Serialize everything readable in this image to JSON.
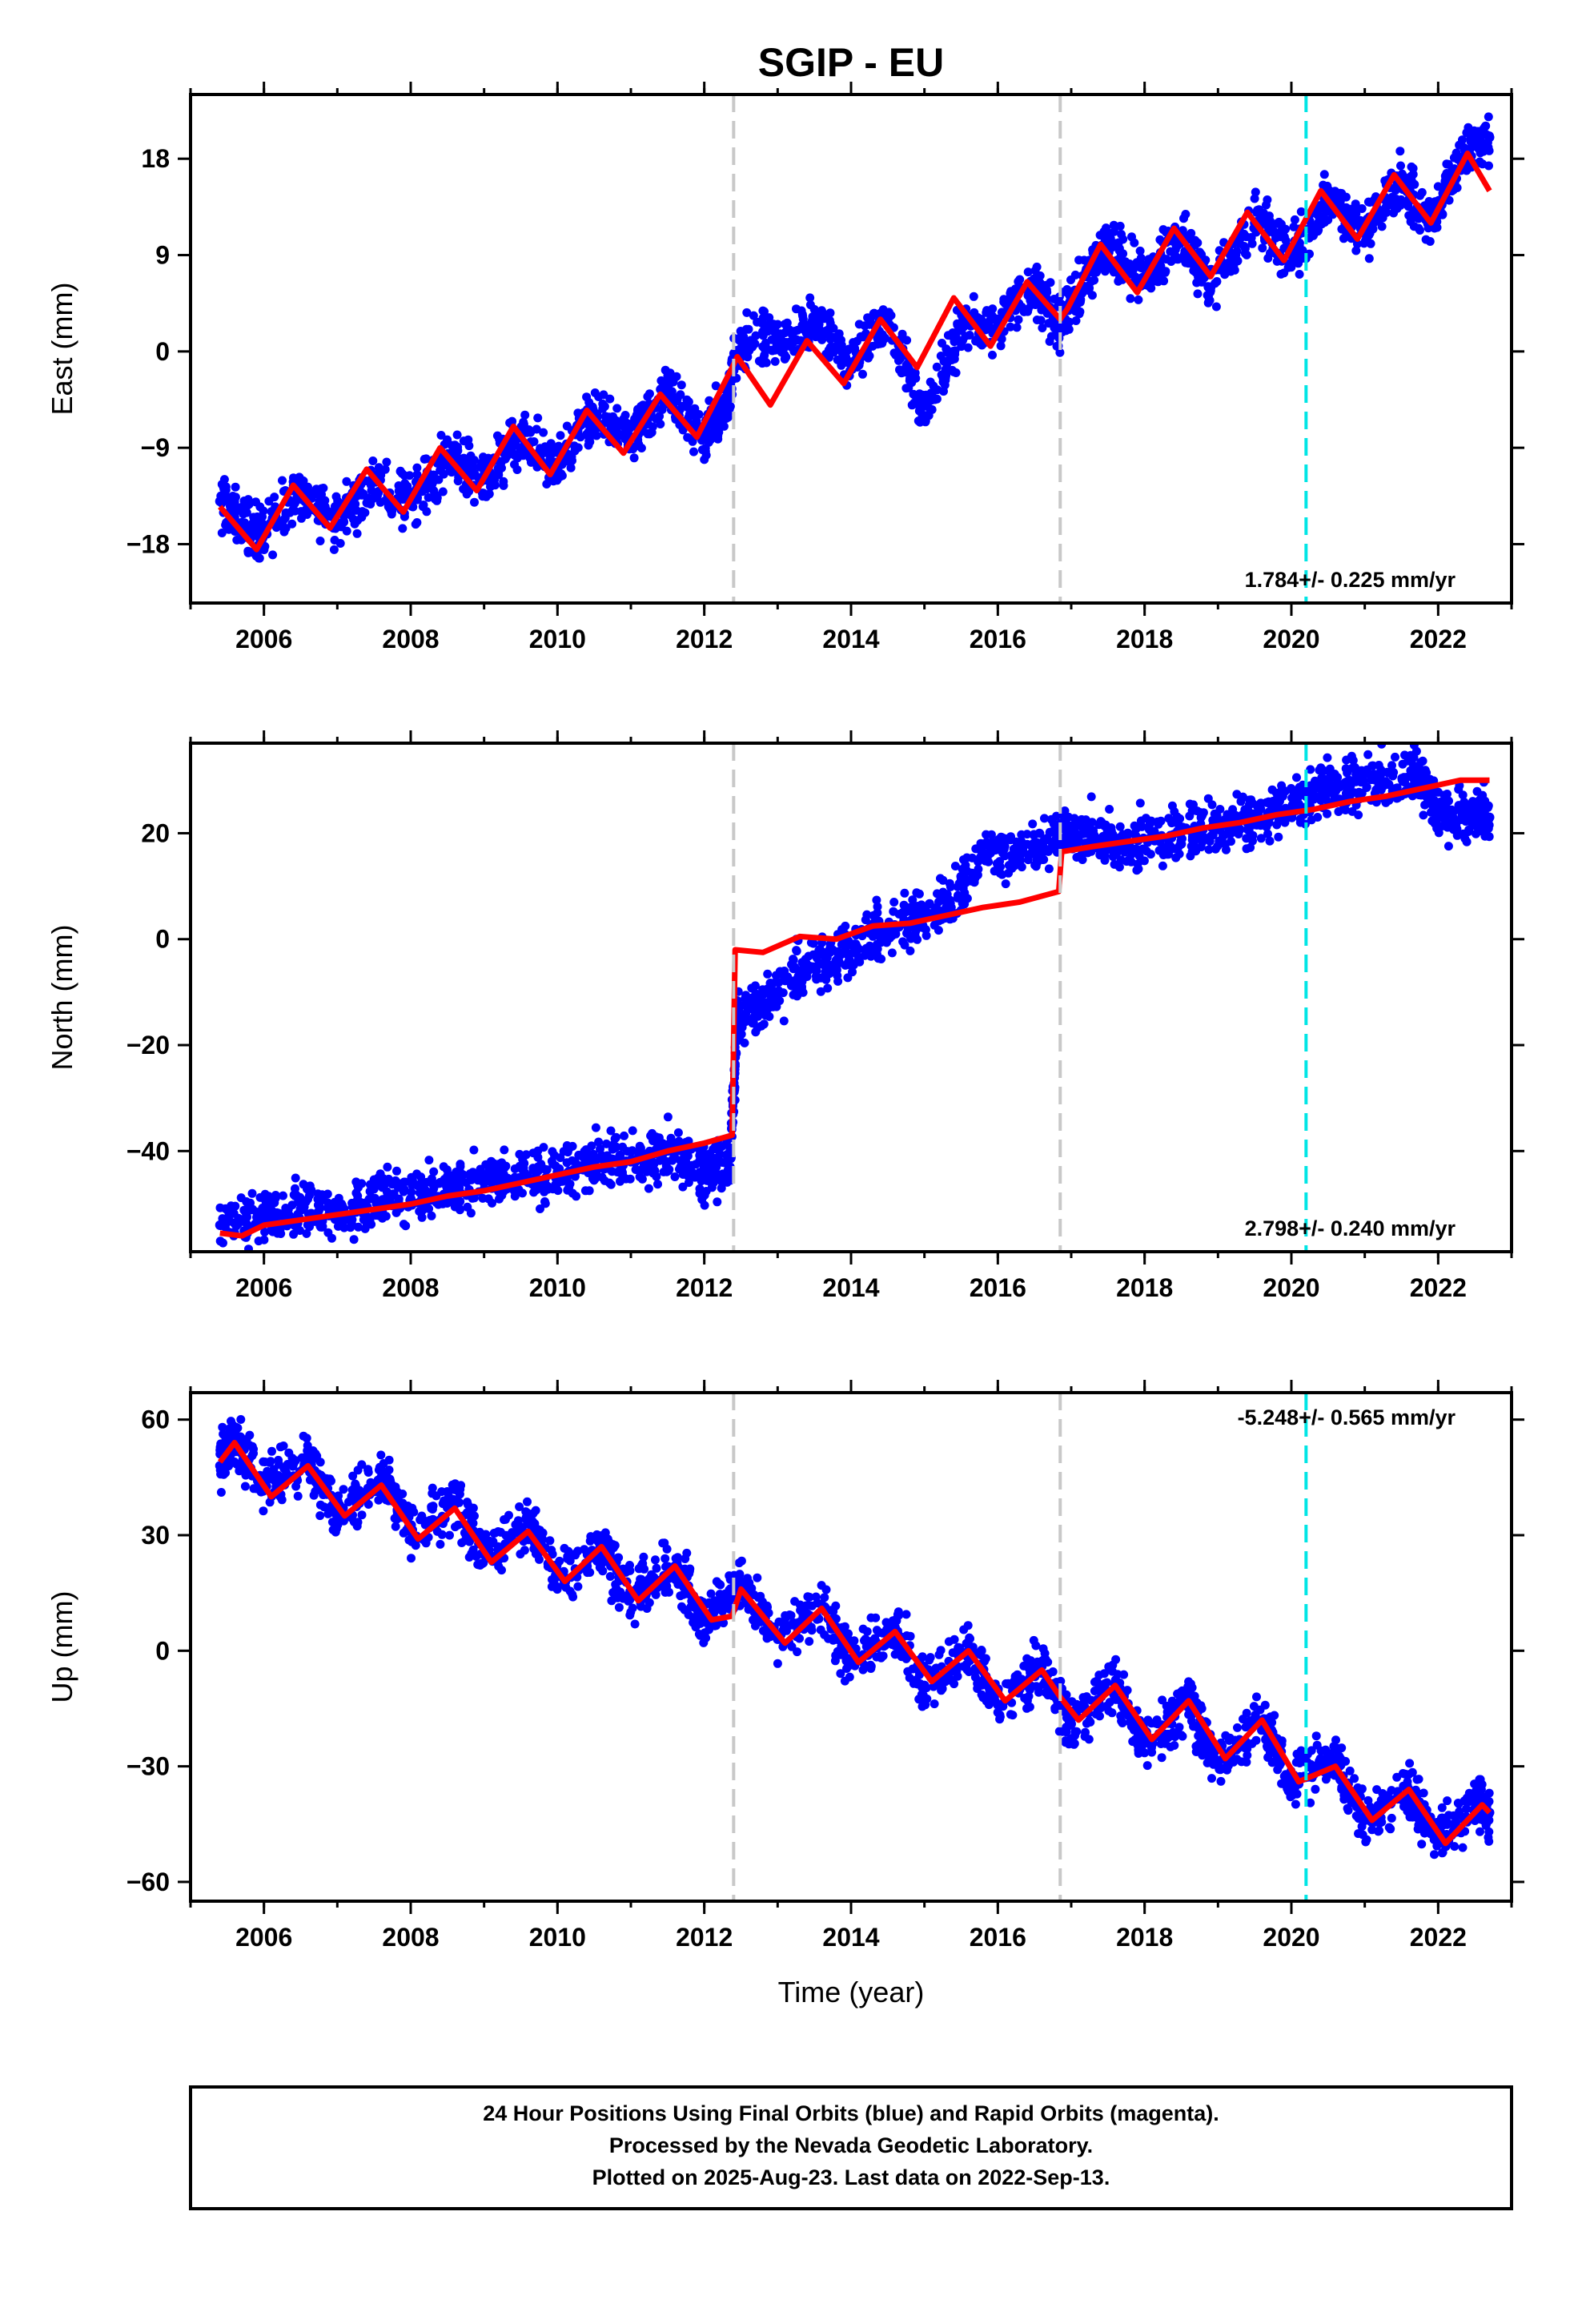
{
  "title": "SGIP - EU",
  "xlabel": "Time (year)",
  "caption": [
    "24 Hour Positions Using Final Orbits (blue) and Rapid Orbits (magenta).",
    "Processed by the Nevada Geodetic Laboratory.",
    "Plotted on 2025-Aug-23. Last data on 2022-Sep-13."
  ],
  "colors": {
    "final_orbits": "#0000ff",
    "model": "#ff0000",
    "equipment_change": "#c8c8c8",
    "other_event": "#00e5e5"
  },
  "chart_data": [
    {
      "type": "scatter",
      "ylabel": "East (mm)",
      "xlim": [
        2005.0,
        2023.0
      ],
      "ylim": [
        -23.5,
        24.0
      ],
      "x_ticks": [
        2006,
        2008,
        2010,
        2012,
        2014,
        2016,
        2018,
        2020,
        2022
      ],
      "y_ticks": [
        -18,
        -9,
        0,
        9,
        18
      ],
      "rate_label": "1.784+/- 0.225 mm/yr",
      "rate_position": "bottom-right",
      "vertical_lines": [
        {
          "x": 2012.4,
          "color": "gray"
        },
        {
          "x": 2016.85,
          "color": "gray"
        },
        {
          "x": 2020.2,
          "color": "cyan"
        }
      ],
      "series": [
        {
          "name": "Final Orbits (blue)",
          "kind": "points",
          "x": [
            2005.4,
            2005.7,
            2006.0,
            2006.5,
            2007.0,
            2007.5,
            2008.0,
            2008.5,
            2009.0,
            2009.5,
            2010.0,
            2010.5,
            2011.0,
            2011.5,
            2012.0,
            2012.3,
            2012.5,
            2013.0,
            2013.5,
            2014.0,
            2014.5,
            2015.0,
            2015.5,
            2016.0,
            2016.5,
            2016.85,
            2017.2,
            2017.5,
            2018.0,
            2018.5,
            2018.9,
            2019.5,
            2020.0,
            2020.5,
            2021.0,
            2021.5,
            2021.9,
            2022.3,
            2022.7
          ],
          "y": [
            -14,
            -16,
            -17,
            -13,
            -16,
            -12,
            -14,
            -10,
            -12,
            -8,
            -11,
            -6,
            -8,
            -4,
            -8,
            -5,
            1,
            1,
            3,
            -1,
            3,
            -6,
            2,
            3,
            6,
            2,
            7,
            10,
            7,
            11,
            6,
            12,
            9,
            14,
            11,
            16,
            12,
            18,
            20
          ]
        },
        {
          "name": "Model",
          "kind": "line",
          "x": [
            2005.4,
            2005.9,
            2006.4,
            2006.9,
            2007.4,
            2007.9,
            2008.4,
            2008.9,
            2009.4,
            2009.9,
            2010.4,
            2010.9,
            2011.4,
            2011.9,
            2012.38,
            2012.45,
            2012.9,
            2013.4,
            2013.9,
            2014.4,
            2014.9,
            2015.4,
            2015.9,
            2016.4,
            2016.85,
            2016.95,
            2017.4,
            2017.9,
            2018.4,
            2018.9,
            2019.4,
            2019.9,
            2020.4,
            2020.9,
            2021.4,
            2021.9,
            2022.4,
            2022.7
          ],
          "y": [
            -14.5,
            -18.5,
            -12.5,
            -16.5,
            -11,
            -15,
            -9,
            -13,
            -7,
            -11.5,
            -5.5,
            -9.5,
            -4,
            -8,
            -1.5,
            -0.5,
            -5,
            1,
            -3,
            3,
            -1.5,
            5,
            0.5,
            6.5,
            3,
            4,
            10,
            5.5,
            11.5,
            7,
            13,
            8.5,
            15,
            10.5,
            16.5,
            12,
            18.5,
            15
          ]
        }
      ]
    },
    {
      "type": "scatter",
      "ylabel": "North (mm)",
      "xlim": [
        2005.0,
        2023.0
      ],
      "ylim": [
        -59.0,
        37.0
      ],
      "x_ticks": [
        2006,
        2008,
        2010,
        2012,
        2014,
        2016,
        2018,
        2020,
        2022
      ],
      "y_ticks": [
        -40,
        -20,
        0,
        20
      ],
      "rate_label": "2.798+/- 0.240 mm/yr",
      "rate_position": "bottom-right",
      "vertical_lines": [
        {
          "x": 2012.4,
          "color": "gray"
        },
        {
          "x": 2016.85,
          "color": "gray"
        },
        {
          "x": 2020.2,
          "color": "cyan"
        }
      ],
      "series": [
        {
          "name": "Final Orbits (blue)",
          "kind": "points",
          "x": [
            2005.4,
            2006.0,
            2006.5,
            2007.0,
            2007.5,
            2008.0,
            2008.5,
            2009.0,
            2009.5,
            2010.0,
            2010.5,
            2011.0,
            2011.5,
            2012.0,
            2012.35,
            2012.45,
            2012.8,
            2013.3,
            2013.8,
            2014.3,
            2014.8,
            2015.3,
            2015.8,
            2016.3,
            2016.8,
            2017.2,
            2017.7,
            2018.2,
            2018.7,
            2019.2,
            2019.7,
            2020.2,
            2020.7,
            2021.2,
            2021.7,
            2022.0,
            2022.4,
            2022.7
          ],
          "y": [
            -54,
            -52,
            -51,
            -52,
            -49,
            -49,
            -47,
            -46,
            -45,
            -44,
            -42,
            -42,
            -40,
            -44,
            -43,
            -15,
            -12,
            -6,
            -4,
            1,
            3,
            6,
            16,
            17,
            19,
            20,
            18,
            19,
            21,
            22,
            24,
            27,
            29,
            30,
            32,
            24,
            23,
            23
          ]
        },
        {
          "name": "Model",
          "kind": "line",
          "x": [
            2005.4,
            2005.7,
            2006.0,
            2006.5,
            2007.0,
            2007.5,
            2008.0,
            2008.5,
            2009.0,
            2009.5,
            2010.0,
            2010.5,
            2011.0,
            2011.5,
            2012.0,
            2012.38,
            2012.42,
            2012.8,
            2013.3,
            2013.8,
            2014.3,
            2014.8,
            2015.3,
            2015.8,
            2016.3,
            2016.83,
            2016.87,
            2017.3,
            2017.8,
            2018.3,
            2018.8,
            2019.3,
            2019.8,
            2020.3,
            2020.8,
            2021.3,
            2021.8,
            2022.3,
            2022.7
          ],
          "y": [
            -55.5,
            -56,
            -54,
            -53,
            -52,
            -51,
            -50,
            -48.5,
            -47.5,
            -46,
            -44.5,
            -43,
            -42,
            -40,
            -38.5,
            -37,
            -2,
            -2.5,
            0.5,
            0,
            2.5,
            3,
            4.5,
            6,
            7,
            9,
            16.5,
            17.5,
            18.5,
            19.5,
            21,
            22,
            23.5,
            24.5,
            26,
            27,
            28.5,
            30,
            30
          ]
        }
      ]
    },
    {
      "type": "scatter",
      "ylabel": "Up (mm)",
      "xlim": [
        2005.0,
        2023.0
      ],
      "ylim": [
        -65.0,
        67.0
      ],
      "x_ticks": [
        2006,
        2008,
        2010,
        2012,
        2014,
        2016,
        2018,
        2020,
        2022
      ],
      "y_ticks": [
        -60,
        -30,
        0,
        30,
        60
      ],
      "rate_label": "-5.248+/- 0.565 mm/yr",
      "rate_position": "top-right",
      "vertical_lines": [
        {
          "x": 2012.4,
          "color": "gray"
        },
        {
          "x": 2016.85,
          "color": "gray"
        },
        {
          "x": 2020.2,
          "color": "cyan"
        }
      ],
      "series": [
        {
          "name": "Final Orbits (blue)",
          "kind": "points",
          "x": [
            2005.4,
            2005.6,
            2006.0,
            2006.6,
            2007.0,
            2007.6,
            2008.0,
            2008.6,
            2009.0,
            2009.6,
            2010.0,
            2010.6,
            2011.0,
            2011.6,
            2012.0,
            2012.5,
            2013.0,
            2013.6,
            2014.0,
            2014.6,
            2015.0,
            2015.6,
            2016.0,
            2016.6,
            2017.0,
            2017.6,
            2018.0,
            2018.6,
            2019.0,
            2019.6,
            2020.0,
            2020.6,
            2021.0,
            2021.6,
            2022.0,
            2022.5,
            2022.7
          ],
          "y": [
            48,
            55,
            42,
            50,
            36,
            45,
            31,
            38,
            25,
            33,
            20,
            27,
            14,
            22,
            8,
            18,
            3,
            12,
            -3,
            6,
            -9,
            0,
            -14,
            -4,
            -19,
            -9,
            -24,
            -14,
            -29,
            -18,
            -34,
            -28,
            -44,
            -36,
            -50,
            -38,
            -42
          ]
        },
        {
          "name": "Model",
          "kind": "line",
          "x": [
            2005.4,
            2005.6,
            2006.1,
            2006.6,
            2007.1,
            2007.6,
            2008.1,
            2008.6,
            2009.1,
            2009.6,
            2010.1,
            2010.6,
            2011.1,
            2011.6,
            2012.1,
            2012.38,
            2012.5,
            2013.1,
            2013.6,
            2014.1,
            2014.6,
            2015.1,
            2015.6,
            2016.1,
            2016.6,
            2016.85,
            2017.1,
            2017.6,
            2018.1,
            2018.6,
            2019.1,
            2019.6,
            2020.1,
            2020.6,
            2021.1,
            2021.6,
            2022.1,
            2022.6,
            2022.7
          ],
          "y": [
            49,
            54,
            40,
            48,
            35,
            43,
            29,
            37,
            23,
            31,
            18,
            27,
            13,
            22,
            8,
            9,
            16,
            2,
            11,
            -3,
            5,
            -8,
            0,
            -13,
            -5,
            -12,
            -18,
            -9,
            -23,
            -13,
            -28,
            -18,
            -34,
            -30,
            -44,
            -36,
            -50,
            -40,
            -42
          ]
        }
      ]
    }
  ]
}
